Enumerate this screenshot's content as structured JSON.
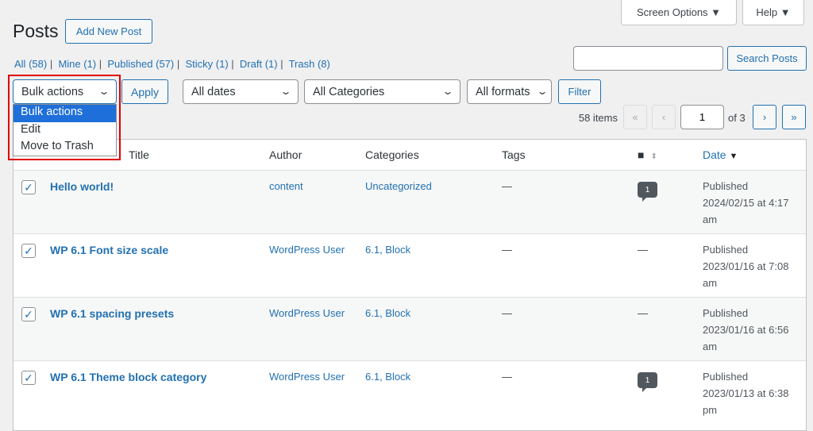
{
  "header": {
    "title": "Posts",
    "add_new": "Add New Post",
    "screen_options": "Screen Options ▼",
    "help": "Help ▼"
  },
  "views": [
    {
      "label": "All",
      "count": "(58)"
    },
    {
      "label": "Mine",
      "count": "(1)"
    },
    {
      "label": "Published",
      "count": "(57)"
    },
    {
      "label": "Sticky",
      "count": "(1)"
    },
    {
      "label": "Draft",
      "count": "(1)"
    },
    {
      "label": "Trash",
      "count": "(8)"
    }
  ],
  "search": {
    "value": "",
    "button": "Search Posts"
  },
  "bulk": {
    "selected": "Bulk actions",
    "options": [
      "Bulk actions",
      "Edit",
      "Move to Trash"
    ],
    "apply": "Apply"
  },
  "filters": {
    "dates": "All dates",
    "categories": "All Categories",
    "formats": "All formats",
    "filter": "Filter"
  },
  "pagination": {
    "items": "58 items",
    "first": "«",
    "prev": "‹",
    "current": "1",
    "of": "of 3",
    "next": "›",
    "last": "»"
  },
  "columns": {
    "title": "Title",
    "author": "Author",
    "categories": "Categories",
    "tags": "Tags",
    "date": "Date"
  },
  "rows": [
    {
      "title": "Hello world!",
      "author": "content",
      "categories": "Uncategorized",
      "tags": "—",
      "comments": "1",
      "status": "Published",
      "date": "2024/02/15 at 4:17",
      "ampm": "am"
    },
    {
      "title": "WP 6.1 Font size scale",
      "author": "WordPress User",
      "categories": "6.1, Block",
      "tags": "—",
      "comments": "—",
      "status": "Published",
      "date": "2023/01/16 at 7:08",
      "ampm": "am"
    },
    {
      "title": "WP 6.1 spacing presets",
      "author": "WordPress User",
      "categories": "6.1, Block",
      "tags": "—",
      "comments": "—",
      "status": "Published",
      "date": "2023/01/16 at 6:56",
      "ampm": "am"
    },
    {
      "title": "WP 6.1 Theme block category",
      "author": "WordPress User",
      "categories": "6.1, Block",
      "tags": "—",
      "comments": "1",
      "status": "Published",
      "date": "2023/01/13 at 6:38",
      "ampm": "pm"
    }
  ],
  "colors": {
    "accent": "#2271b1",
    "highlight": "#e00000",
    "selected_option": "#1e6fd9"
  }
}
